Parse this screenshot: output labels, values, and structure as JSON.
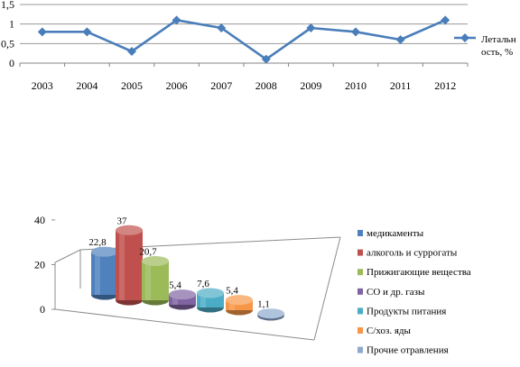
{
  "chart_data": [
    {
      "type": "line",
      "title": "",
      "xlabel": "",
      "ylabel": "",
      "categories": [
        "2003",
        "2004",
        "2005",
        "2006",
        "2007",
        "2008",
        "2009",
        "2010",
        "2011",
        "2012"
      ],
      "series": [
        {
          "name": "Летальность, %",
          "name_lines": [
            "Летальн",
            "ость, %"
          ],
          "color": "#4a7ebb",
          "values": [
            0.8,
            0.8,
            0.3,
            1.1,
            0.9,
            0.1,
            0.9,
            0.8,
            0.6,
            1.1
          ]
        }
      ],
      "ylim": [
        0,
        1.5
      ],
      "yticks": [
        "0",
        "0,5",
        "1",
        "1,5"
      ],
      "ytick_values": [
        0,
        0.5,
        1,
        1.5
      ],
      "grid": true,
      "legend": "right"
    },
    {
      "type": "bar",
      "style": "3d-cylinder",
      "title": "",
      "xlabel": "",
      "ylabel": "",
      "ylim": [
        0,
        40
      ],
      "yticks": [
        "0",
        "20",
        "40"
      ],
      "ytick_values": [
        0,
        20,
        40
      ],
      "legend": "right",
      "series": [
        {
          "name": "медикаменты",
          "value": 22.8,
          "label": "22,8",
          "color": "#4f81bd"
        },
        {
          "name": "алкоголь и суррогаты",
          "value": 37,
          "label": "37",
          "color": "#c0504d"
        },
        {
          "name": "Прижигающие вещества",
          "value": 20.7,
          "label": "20,7",
          "color": "#9bbb59"
        },
        {
          "name": "СО и др. газы",
          "value": 5.4,
          "label": "5,4",
          "color": "#8064a2"
        },
        {
          "name": "Продукты питания",
          "value": 7.6,
          "label": "7,6",
          "color": "#4bacc6"
        },
        {
          "name": "С/хоз. яды",
          "value": 5.4,
          "label": "5,4",
          "color": "#f79646"
        },
        {
          "name": "Прочие отравления",
          "value": 1.1,
          "label": "1,1",
          "color": "#8ea9cf"
        }
      ]
    }
  ]
}
